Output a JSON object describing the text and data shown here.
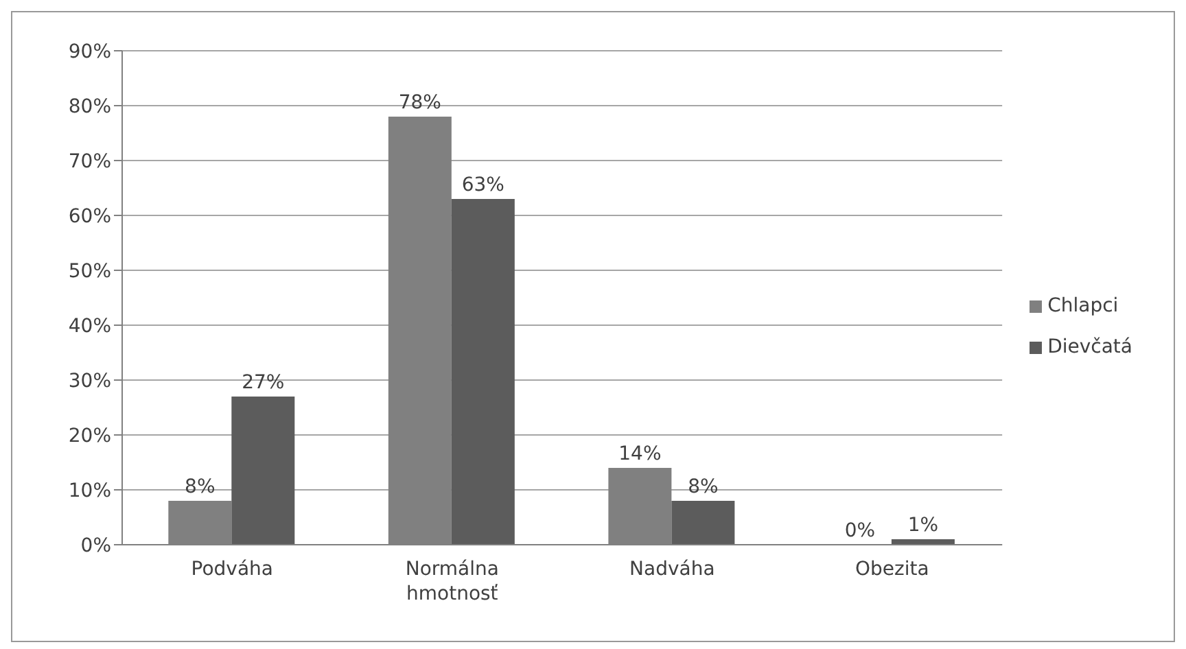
{
  "chart_data": {
    "type": "bar",
    "categories": [
      "Podváha",
      "Normálna hmotnosť",
      "Nadváha",
      "Obezita"
    ],
    "series": [
      {
        "name": "Chlapci",
        "color": "#808080",
        "values": [
          8,
          78,
          14,
          0
        ],
        "value_labels": [
          "8%",
          "78%",
          "14%",
          "0%"
        ]
      },
      {
        "name": "Dievčatá",
        "color": "#5c5c5c",
        "values": [
          27,
          63,
          8,
          1
        ],
        "value_labels": [
          "27%",
          "63%",
          "8%",
          "1%"
        ]
      }
    ],
    "ylim": [
      0,
      90
    ],
    "yticks": [
      {
        "value": 0,
        "label": "0%"
      },
      {
        "value": 10,
        "label": "10%"
      },
      {
        "value": 20,
        "label": "20%"
      },
      {
        "value": 30,
        "label": "30%"
      },
      {
        "value": 40,
        "label": "40%"
      },
      {
        "value": 50,
        "label": "50%"
      },
      {
        "value": 60,
        "label": "60%"
      },
      {
        "value": 70,
        "label": "70%"
      },
      {
        "value": 80,
        "label": "80%"
      },
      {
        "value": 90,
        "label": "90%"
      }
    ],
    "grid": "y",
    "legend": "right"
  }
}
